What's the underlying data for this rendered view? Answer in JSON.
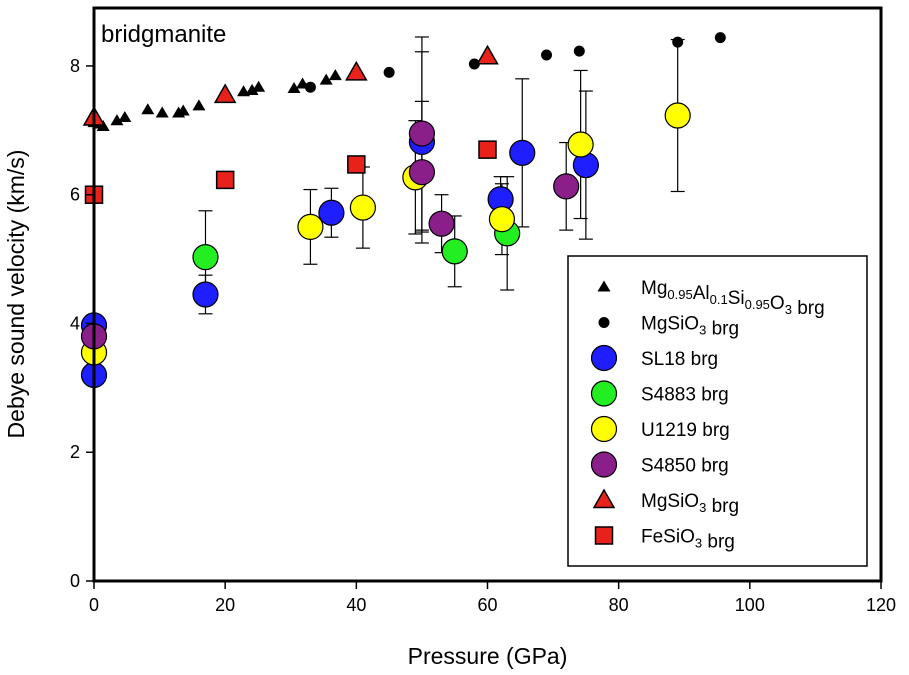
{
  "chart_data": {
    "type": "scatter",
    "annotation": "bridgmanite",
    "xlabel": "Pressure (GPa)",
    "ylabel": "Debye sound velocity (km/s)",
    "xlim": [
      0,
      120
    ],
    "ylim": [
      0,
      8.9
    ],
    "xticks": [
      "0",
      "20",
      "40",
      "60",
      "80",
      "100",
      "120"
    ],
    "yticks": [
      "0",
      "2",
      "4",
      "6",
      "8"
    ],
    "legend_position": "bottom-right",
    "series": [
      {
        "name": "Mg0.95Al0.1Si0.95O3 brg",
        "legend_parts": [
          {
            "t": "Mg",
            "sub": false
          },
          {
            "t": "0.95",
            "sub": true
          },
          {
            "t": "Al",
            "sub": false
          },
          {
            "t": "0.1",
            "sub": true
          },
          {
            "t": "Si",
            "sub": false
          },
          {
            "t": "0.95",
            "sub": true
          },
          {
            "t": "O",
            "sub": false
          },
          {
            "t": "3",
            "sub": true
          },
          {
            "t": " brg",
            "sub": false
          }
        ],
        "marker": "small-triangle",
        "fill": "#000000",
        "points": [
          {
            "x": 0,
            "y": 7.12
          },
          {
            "x": 0.7,
            "y": 7.1
          },
          {
            "x": 1.4,
            "y": 7.06
          },
          {
            "x": 3.5,
            "y": 7.15
          },
          {
            "x": 4.7,
            "y": 7.2
          },
          {
            "x": 8.2,
            "y": 7.32
          },
          {
            "x": 10.4,
            "y": 7.27
          },
          {
            "x": 12.9,
            "y": 7.27
          },
          {
            "x": 13.6,
            "y": 7.3
          },
          {
            "x": 16,
            "y": 7.38
          },
          {
            "x": 20.5,
            "y": 7.52
          },
          {
            "x": 22.8,
            "y": 7.6
          },
          {
            "x": 24.1,
            "y": 7.62
          },
          {
            "x": 25.1,
            "y": 7.67
          },
          {
            "x": 30.5,
            "y": 7.65
          },
          {
            "x": 31.8,
            "y": 7.72
          },
          {
            "x": 35.4,
            "y": 7.78
          },
          {
            "x": 36.8,
            "y": 7.85
          }
        ]
      },
      {
        "name": "MgSiO3 brg",
        "legend_parts": [
          {
            "t": "MgSiO",
            "sub": false
          },
          {
            "t": "3",
            "sub": true
          },
          {
            "t": " brg",
            "sub": false
          }
        ],
        "marker": "small-circle",
        "fill": "#000000",
        "points": [
          {
            "x": 33,
            "y": 7.67
          },
          {
            "x": 45,
            "y": 7.9
          },
          {
            "x": 58,
            "y": 8.03
          },
          {
            "x": 69,
            "y": 8.17
          },
          {
            "x": 74,
            "y": 8.23
          },
          {
            "x": 89,
            "y": 8.37
          },
          {
            "x": 95.5,
            "y": 8.44
          }
        ]
      },
      {
        "name": "SL18 brg",
        "legend_parts": [
          {
            "t": "SL18 brg",
            "sub": false
          }
        ],
        "marker": "circle",
        "fill": "#1e1eff",
        "points": [
          {
            "x": 0,
            "y": 3.97
          },
          {
            "x": 0,
            "y": 3.2
          },
          {
            "x": 17,
            "y": 4.45,
            "err": 0.3
          },
          {
            "x": 36.2,
            "y": 5.72,
            "err": 0.38
          },
          {
            "x": 50,
            "y": 6.82,
            "err": 1.4
          },
          {
            "x": 62,
            "y": 5.93,
            "err": 0.35
          },
          {
            "x": 65.3,
            "y": 6.65,
            "err": 1.15
          },
          {
            "x": 75,
            "y": 6.46,
            "err": 1.15
          }
        ]
      },
      {
        "name": "S4883 brg",
        "legend_parts": [
          {
            "t": "S4883 brg",
            "sub": false
          }
        ],
        "marker": "circle",
        "fill": "#22ee22",
        "points": [
          {
            "x": 17,
            "y": 5.03,
            "err": 0.72
          },
          {
            "x": 55,
            "y": 5.12,
            "err": 0.55
          },
          {
            "x": 63,
            "y": 5.4,
            "err": 0.88
          }
        ]
      },
      {
        "name": "U1219 brg",
        "legend_parts": [
          {
            "t": "U1219 brg",
            "sub": false
          }
        ],
        "marker": "circle",
        "fill": "#ffff00",
        "points": [
          {
            "x": 0,
            "y": 3.55
          },
          {
            "x": 33,
            "y": 5.5,
            "err": 0.58
          },
          {
            "x": 41,
            "y": 5.8,
            "err": 0.63
          },
          {
            "x": 49,
            "y": 6.27,
            "err": 0.88
          },
          {
            "x": 62.2,
            "y": 5.62,
            "err": 0.55
          },
          {
            "x": 74.2,
            "y": 6.78,
            "err": 1.15
          },
          {
            "x": 89,
            "y": 7.23,
            "err": 1.18
          }
        ]
      },
      {
        "name": "S4850 brg",
        "legend_parts": [
          {
            "t": "S4850 brg",
            "sub": false
          }
        ],
        "marker": "circle",
        "fill": "#8a1f8a",
        "points": [
          {
            "x": 0,
            "y": 3.8
          },
          {
            "x": 50,
            "y": 6.95,
            "err": 1.5
          },
          {
            "x": 50,
            "y": 6.35,
            "err": 1.1
          },
          {
            "x": 53,
            "y": 5.55,
            "err": 0.45
          },
          {
            "x": 72,
            "y": 6.13,
            "err": 0.68
          }
        ]
      },
      {
        "name": "MgSiO3 brg",
        "legend_parts": [
          {
            "t": "MgSiO",
            "sub": false
          },
          {
            "t": "3",
            "sub": true
          },
          {
            "t": " brg",
            "sub": false
          }
        ],
        "marker": "triangle",
        "fill": "#e8211a",
        "points": [
          {
            "x": 0,
            "y": 7.2
          },
          {
            "x": 20,
            "y": 7.55
          },
          {
            "x": 40,
            "y": 7.9
          },
          {
            "x": 60,
            "y": 8.15
          }
        ]
      },
      {
        "name": "FeSiO3 brg",
        "legend_parts": [
          {
            "t": "FeSiO",
            "sub": false
          },
          {
            "t": "3",
            "sub": true
          },
          {
            "t": " brg",
            "sub": false
          }
        ],
        "marker": "square",
        "fill": "#e8211a",
        "points": [
          {
            "x": 0,
            "y": 6.0
          },
          {
            "x": 20,
            "y": 6.23
          },
          {
            "x": 40,
            "y": 6.47
          },
          {
            "x": 60,
            "y": 6.7
          }
        ]
      }
    ]
  }
}
